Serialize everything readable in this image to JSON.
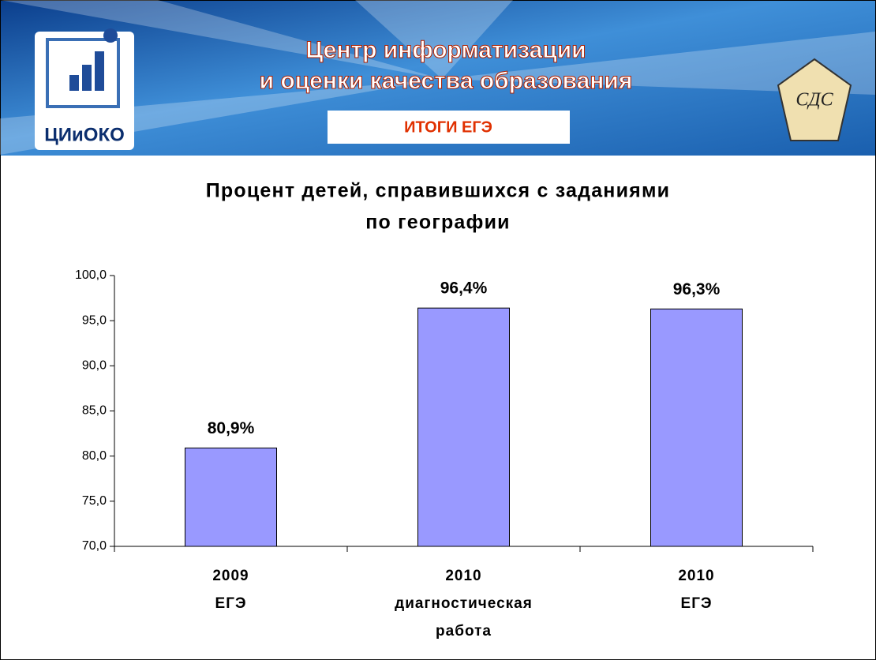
{
  "header": {
    "title_lines": [
      "Центр информатизации",
      "и оценки качества образования"
    ],
    "badge": "ИТОГИ ЕГЭ",
    "logo_left": "ЦИиОКО",
    "logo_right": "СДС"
  },
  "chart_data": {
    "type": "bar",
    "title": [
      "Процент детей, справившихся с заданиями",
      "по географии"
    ],
    "categories": [
      [
        "2009",
        "ЕГЭ"
      ],
      [
        "2010",
        "диагностическая",
        "работа"
      ],
      [
        "2010",
        "ЕГЭ"
      ]
    ],
    "values": [
      80.9,
      96.4,
      96.3
    ],
    "value_labels": [
      "80,9%",
      "96,4%",
      "96,3%"
    ],
    "color": "#9999ff",
    "ylim": [
      70,
      100
    ],
    "yticks": [
      {
        "value": 70,
        "label": "70,0"
      },
      {
        "value": 75,
        "label": "75,0"
      },
      {
        "value": 80,
        "label": "80,0"
      },
      {
        "value": 85,
        "label": "85,0"
      },
      {
        "value": 90,
        "label": "90,0"
      },
      {
        "value": 95,
        "label": "95,0"
      },
      {
        "value": 100,
        "label": "100,0"
      }
    ]
  }
}
